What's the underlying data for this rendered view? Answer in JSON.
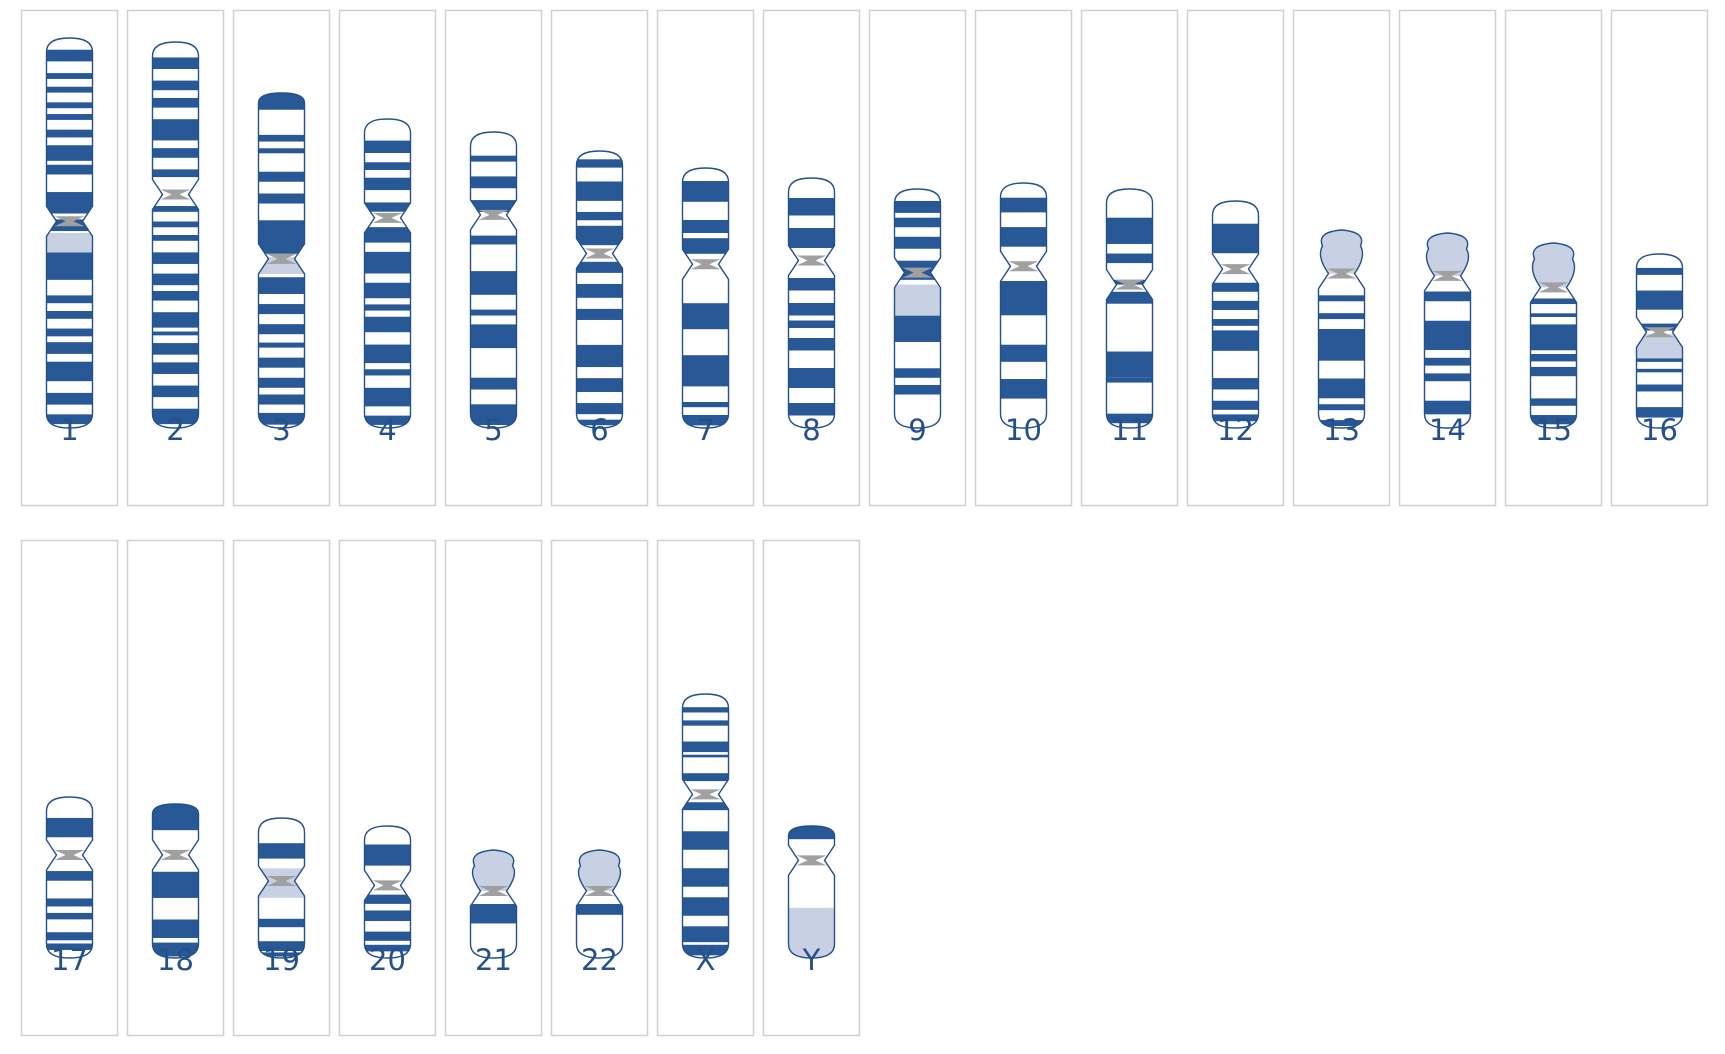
{
  "colors": {
    "band_dark": "#285896",
    "band_light": "#ffffff",
    "heterochromatin": "#c8d0e4",
    "centromere": "#a0a0a0",
    "outline": "#24508c",
    "panel_border": "#d0d0d0",
    "label": "#24508c"
  },
  "chromosomes": [
    {
      "label": "1",
      "p": 0.47,
      "pcap": "round",
      "dark": [
        [
          0.03,
          0.06
        ],
        [
          0.09,
          0.105
        ],
        [
          0.125,
          0.14
        ],
        [
          0.165,
          0.18
        ],
        [
          0.195,
          0.21
        ],
        [
          0.235,
          0.255
        ],
        [
          0.275,
          0.315
        ],
        [
          0.325,
          0.35
        ],
        [
          0.395,
          0.45
        ],
        [
          0.465,
          0.495
        ],
        [
          0.55,
          0.62
        ],
        [
          0.61,
          0.615
        ],
        [
          0.66,
          0.68
        ],
        [
          0.7,
          0.72
        ],
        [
          0.745,
          0.765
        ],
        [
          0.78,
          0.81
        ],
        [
          0.83,
          0.88
        ],
        [
          0.91,
          0.94
        ],
        [
          0.965,
          0.99
        ]
      ],
      "het": [
        [
          0.5,
          0.62
        ]
      ]
    },
    {
      "label": "2",
      "p": 0.395,
      "pcap": "round",
      "dark": [
        [
          0.04,
          0.07
        ],
        [
          0.1,
          0.125
        ],
        [
          0.145,
          0.17
        ],
        [
          0.2,
          0.255
        ],
        [
          0.275,
          0.3
        ],
        [
          0.33,
          0.35
        ],
        [
          0.425,
          0.44
        ],
        [
          0.465,
          0.48
        ],
        [
          0.5,
          0.515
        ],
        [
          0.545,
          0.575
        ],
        [
          0.6,
          0.63
        ],
        [
          0.645,
          0.67
        ],
        [
          0.7,
          0.74
        ],
        [
          0.75,
          0.76
        ],
        [
          0.78,
          0.81
        ],
        [
          0.83,
          0.86
        ],
        [
          0.89,
          0.92
        ],
        [
          0.95,
          0.99
        ]
      ],
      "het": []
    },
    {
      "label": "3",
      "p": 0.495,
      "pcap": "flat",
      "dark": [
        [
          0.0,
          0.05
        ],
        [
          0.125,
          0.145
        ],
        [
          0.165,
          0.18
        ],
        [
          0.235,
          0.265
        ],
        [
          0.3,
          0.33
        ],
        [
          0.38,
          0.48
        ],
        [
          0.55,
          0.6
        ],
        [
          0.63,
          0.66
        ],
        [
          0.69,
          0.72
        ],
        [
          0.745,
          0.76
        ],
        [
          0.79,
          0.82
        ],
        [
          0.85,
          0.88
        ],
        [
          0.9,
          0.93
        ],
        [
          0.955,
          0.99
        ]
      ],
      "het": [
        [
          0.49,
          0.54
        ]
      ]
    },
    {
      "label": "4",
      "p": 0.32,
      "pcap": "round",
      "dark": [
        [
          0.07,
          0.11
        ],
        [
          0.14,
          0.165
        ],
        [
          0.19,
          0.23
        ],
        [
          0.27,
          0.3
        ],
        [
          0.35,
          0.4
        ],
        [
          0.43,
          0.5
        ],
        [
          0.53,
          0.58
        ],
        [
          0.6,
          0.62
        ],
        [
          0.64,
          0.69
        ],
        [
          0.73,
          0.79
        ],
        [
          0.81,
          0.83
        ],
        [
          0.87,
          0.93
        ],
        [
          0.96,
          0.99
        ]
      ],
      "het": []
    },
    {
      "label": "5",
      "p": 0.28,
      "pcap": "round",
      "dark": [
        [
          0.08,
          0.1
        ],
        [
          0.15,
          0.19
        ],
        [
          0.23,
          0.27
        ],
        [
          0.35,
          0.38
        ],
        [
          0.47,
          0.55
        ],
        [
          0.6,
          0.62
        ],
        [
          0.65,
          0.73
        ],
        [
          0.83,
          0.87
        ],
        [
          0.92,
          0.99
        ]
      ],
      "het": []
    },
    {
      "label": "6",
      "p": 0.37,
      "pcap": "round",
      "dark": [
        [
          0.03,
          0.06
        ],
        [
          0.11,
          0.18
        ],
        [
          0.22,
          0.25
        ],
        [
          0.27,
          0.34
        ],
        [
          0.4,
          0.44
        ],
        [
          0.48,
          0.53
        ],
        [
          0.57,
          0.61
        ],
        [
          0.7,
          0.78
        ],
        [
          0.82,
          0.87
        ],
        [
          0.91,
          0.95
        ],
        [
          0.97,
          0.99
        ]
      ],
      "het": []
    },
    {
      "label": "7",
      "p": 0.37,
      "pcap": "round",
      "dark": [
        [
          0.05,
          0.13
        ],
        [
          0.2,
          0.25
        ],
        [
          0.27,
          0.33
        ],
        [
          0.52,
          0.62
        ],
        [
          0.72,
          0.84
        ],
        [
          0.9,
          0.92
        ],
        [
          0.95,
          0.99
        ]
      ],
      "het": []
    },
    {
      "label": "8",
      "p": 0.33,
      "pcap": "round",
      "dark": [
        [
          0.08,
          0.15
        ],
        [
          0.2,
          0.28
        ],
        [
          0.4,
          0.45
        ],
        [
          0.5,
          0.55
        ],
        [
          0.57,
          0.6
        ],
        [
          0.64,
          0.69
        ],
        [
          0.76,
          0.84
        ],
        [
          0.9,
          0.95
        ]
      ],
      "het": []
    },
    {
      "label": "9",
      "p": 0.35,
      "pcap": "round",
      "dark": [
        [
          0.05,
          0.1
        ],
        [
          0.12,
          0.16
        ],
        [
          0.2,
          0.25
        ],
        [
          0.3,
          0.38
        ]
      ],
      "het": [
        [
          0.4,
          0.53
        ]
      ],
      "dark2": [
        [
          0.53,
          0.64
        ],
        [
          0.75,
          0.79
        ],
        [
          0.82,
          0.86
        ]
      ]
    },
    {
      "label": "10",
      "p": 0.34,
      "pcap": "round",
      "dark": [
        [
          0.06,
          0.12
        ],
        [
          0.18,
          0.26
        ],
        [
          0.4,
          0.54
        ],
        [
          0.66,
          0.73
        ],
        [
          0.8,
          0.88
        ]
      ],
      "het": []
    },
    {
      "label": "11",
      "p": 0.4,
      "pcap": "round",
      "dark": [
        [
          0.12,
          0.23
        ],
        [
          0.27,
          0.31
        ],
        [
          0.38,
          0.4
        ],
        [
          0.43,
          0.48
        ],
        [
          0.68,
          0.79
        ],
        [
          0.79,
          0.81
        ],
        [
          0.94,
          0.98
        ]
      ],
      "het": []
    },
    {
      "label": "12",
      "p": 0.3,
      "pcap": "round",
      "dark": [
        [
          0.1,
          0.23
        ],
        [
          0.36,
          0.4
        ],
        [
          0.44,
          0.48
        ],
        [
          0.52,
          0.55
        ],
        [
          0.57,
          0.66
        ],
        [
          0.78,
          0.83
        ],
        [
          0.88,
          0.92
        ],
        [
          0.94,
          0.97
        ]
      ],
      "het": []
    },
    {
      "label": "13",
      "p": 0.22,
      "pcap": "acro",
      "dark": [
        [
          0.33,
          0.36
        ],
        [
          0.42,
          0.45
        ],
        [
          0.5,
          0.66
        ],
        [
          0.75,
          0.85
        ],
        [
          0.88,
          0.91
        ],
        [
          0.96,
          0.99
        ]
      ],
      "het": []
    },
    {
      "label": "14",
      "p": 0.22,
      "pcap": "acro",
      "dark": [
        [
          0.3,
          0.35
        ],
        [
          0.45,
          0.6
        ],
        [
          0.64,
          0.68
        ],
        [
          0.72,
          0.76
        ],
        [
          0.86,
          0.93
        ]
      ],
      "het": []
    },
    {
      "label": "15",
      "p": 0.24,
      "pcap": "acro",
      "dark": [
        [
          0.3,
          0.33
        ],
        [
          0.38,
          0.4
        ],
        [
          0.44,
          0.58
        ],
        [
          0.6,
          0.64
        ],
        [
          0.67,
          0.72
        ],
        [
          0.84,
          0.88
        ],
        [
          0.93,
          0.98
        ]
      ],
      "het": []
    },
    {
      "label": "16",
      "p": 0.45,
      "pcap": "round",
      "dark": [
        [
          0.08,
          0.12
        ],
        [
          0.21,
          0.32
        ],
        [
          0.4,
          0.44
        ],
        [
          0.6,
          0.62
        ],
        [
          0.66,
          0.68
        ],
        [
          0.75,
          0.79
        ],
        [
          0.88,
          0.94
        ]
      ],
      "het": [
        [
          0.46,
          0.6
        ]
      ]
    },
    {
      "label": "17",
      "p": 0.36,
      "pcap": "round",
      "dark": [
        [
          0.13,
          0.25
        ],
        [
          0.46,
          0.52
        ],
        [
          0.63,
          0.68
        ],
        [
          0.72,
          0.76
        ],
        [
          0.84,
          0.89
        ],
        [
          0.91,
          0.95
        ]
      ],
      "het": []
    },
    {
      "label": "18",
      "p": 0.33,
      "pcap": "flat",
      "dark": [
        [
          0.0,
          0.17
        ],
        [
          0.44,
          0.61
        ],
        [
          0.75,
          0.87
        ],
        [
          0.9,
          0.99
        ]
      ],
      "het": []
    },
    {
      "label": "19",
      "p": 0.45,
      "pcap": "round",
      "dark": [
        [
          0.18,
          0.29
        ]
      ],
      "het": [
        [
          0.36,
          0.57
        ]
      ],
      "dark2": [
        [
          0.72,
          0.78
        ],
        [
          0.88,
          0.95
        ],
        [
          0.96,
          0.99
        ]
      ]
    },
    {
      "label": "20",
      "p": 0.45,
      "pcap": "round",
      "dark": [
        [
          0.14,
          0.3
        ],
        [
          0.52,
          0.59
        ],
        [
          0.64,
          0.72
        ],
        [
          0.8,
          0.87
        ],
        [
          0.9,
          0.95
        ]
      ],
      "het": []
    },
    {
      "label": "21",
      "p": 0.38,
      "pcap": "acro",
      "dark": [
        [
          0.5,
          0.68
        ]
      ],
      "het": []
    },
    {
      "label": "22",
      "p": 0.38,
      "pcap": "acro",
      "dark": [
        [
          0.5,
          0.6
        ]
      ],
      "het": []
    },
    {
      "label": "X",
      "p": 0.38,
      "pcap": "round",
      "dark": [
        [
          0.05,
          0.07
        ],
        [
          0.1,
          0.12
        ],
        [
          0.18,
          0.22
        ],
        [
          0.23,
          0.24
        ],
        [
          0.3,
          0.33
        ],
        [
          0.41,
          0.44
        ],
        [
          0.52,
          0.59
        ],
        [
          0.66,
          0.73
        ],
        [
          0.77,
          0.84
        ],
        [
          0.88,
          0.94
        ],
        [
          0.95,
          0.99
        ]
      ],
      "het": []
    },
    {
      "label": "Y",
      "p": 0.26,
      "pcap": "flat",
      "dark": [
        [
          0.0,
          0.1
        ]
      ],
      "het": [
        [
          0.62,
          1.0
        ]
      ]
    }
  ]
}
